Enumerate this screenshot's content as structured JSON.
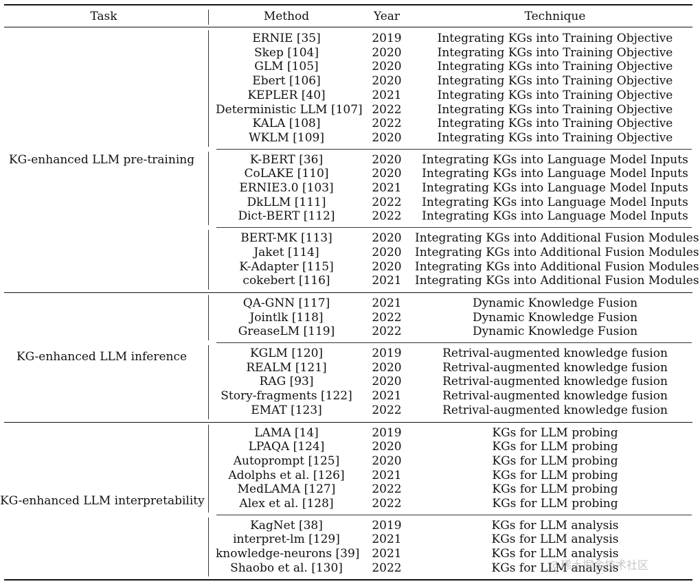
{
  "headers": {
    "task": "Task",
    "method": "Method",
    "year": "Year",
    "technique": "Technique"
  },
  "groups": [
    {
      "task": "KG-enhanced LLM pre-training",
      "blocks": [
        {
          "rows": [
            {
              "method": "ERNIE [35]",
              "year": "2019",
              "technique": "Integrating KGs into Training Objective"
            },
            {
              "method": "Skep [104]",
              "year": "2020",
              "technique": "Integrating KGs into Training Objective"
            },
            {
              "method": "GLM [105]",
              "year": "2020",
              "technique": "Integrating KGs into Training Objective"
            },
            {
              "method": "Ebert [106]",
              "year": "2020",
              "technique": "Integrating KGs into Training Objective"
            },
            {
              "method": "KEPLER [40]",
              "year": "2021",
              "technique": "Integrating KGs into Training Objective"
            },
            {
              "method": "Deterministic LLM [107]",
              "year": "2022",
              "technique": "Integrating KGs into Training Objective"
            },
            {
              "method": "KALA [108]",
              "year": "2022",
              "technique": "Integrating KGs into Training Objective"
            },
            {
              "method": "WKLM [109]",
              "year": "2020",
              "technique": "Integrating KGs into Training Objective"
            }
          ]
        },
        {
          "rows": [
            {
              "method": "K-BERT [36]",
              "year": "2020",
              "technique": "Integrating KGs into Language Model Inputs"
            },
            {
              "method": "CoLAKE [110]",
              "year": "2020",
              "technique": "Integrating KGs into Language Model Inputs"
            },
            {
              "method": "ERNIE3.0 [103]",
              "year": "2021",
              "technique": "Integrating KGs into Language Model Inputs"
            },
            {
              "method": "DkLLM [111]",
              "year": "2022",
              "technique": "Integrating KGs into Language Model Inputs"
            },
            {
              "method": "Dict-BERT [112]",
              "year": "2022",
              "technique": "Integrating KGs into Language Model Inputs"
            }
          ]
        },
        {
          "rows": [
            {
              "method": "BERT-MK [113]",
              "year": "2020",
              "technique": "Integrating KGs into Additional Fusion Modules"
            },
            {
              "method": "Jaket [114]",
              "year": "2020",
              "technique": "Integrating KGs into Additional Fusion Modules"
            },
            {
              "method": "K-Adapter [115]",
              "year": "2020",
              "technique": "Integrating KGs into Additional Fusion Modules"
            },
            {
              "method": "cokebert [116]",
              "year": "2021",
              "technique": "Integrating KGs into Additional Fusion Modules"
            }
          ]
        }
      ]
    },
    {
      "task": "KG-enhanced LLM inference",
      "blocks": [
        {
          "rows": [
            {
              "method": "QA-GNN [117]",
              "year": "2021",
              "technique": "Dynamic Knowledge Fusion"
            },
            {
              "method": "Jointlk [118]",
              "year": "2022",
              "technique": "Dynamic Knowledge Fusion"
            },
            {
              "method": "GreaseLM [119]",
              "year": "2022",
              "technique": "Dynamic Knowledge Fusion"
            }
          ]
        },
        {
          "rows": [
            {
              "method": "KGLM [120]",
              "year": "2019",
              "technique": "Retrival-augmented knowledge fusion"
            },
            {
              "method": "REALM [121]",
              "year": "2020",
              "technique": "Retrival-augmented knowledge fusion"
            },
            {
              "method": "RAG [93]",
              "year": "2020",
              "technique": "Retrival-augmented knowledge fusion"
            },
            {
              "method": "Story-fragments [122]",
              "year": "2021",
              "technique": "Retrival-augmented knowledge fusion"
            },
            {
              "method": "EMAT [123]",
              "year": "2022",
              "technique": "Retrival-augmented knowledge fusion"
            }
          ]
        }
      ]
    },
    {
      "task": "KG-enhanced LLM interpretability",
      "blocks": [
        {
          "rows": [
            {
              "method": "LAMA [14]",
              "year": "2019",
              "technique": "KGs for LLM probing"
            },
            {
              "method": "LPAQA [124]",
              "year": "2020",
              "technique": "KGs for LLM probing"
            },
            {
              "method": "Autoprompt [125]",
              "year": "2020",
              "technique": "KGs for LLM probing"
            },
            {
              "method": "Adolphs et al. [126]",
              "year": "2021",
              "technique": "KGs for LLM probing"
            },
            {
              "method": "MedLAMA [127]",
              "year": "2022",
              "technique": "KGs for LLM probing"
            },
            {
              "method": "Alex et al. [128]",
              "year": "2022",
              "technique": "KGs for LLM probing"
            }
          ]
        },
        {
          "rows": [
            {
              "method": "KagNet [38]",
              "year": "2019",
              "technique": "KGs for LLM analysis"
            },
            {
              "method": "interpret-lm [129]",
              "year": "2021",
              "technique": "KGs for LLM analysis"
            },
            {
              "method": "knowledge-neurons [39]",
              "year": "2021",
              "technique": "KGs for LLM analysis"
            },
            {
              "method": "Shaobo et al. [130]",
              "year": "2022",
              "technique": "KGs for LLM analysis"
            }
          ]
        }
      ]
    }
  ],
  "watermark": "@稀土掘金技术社区"
}
